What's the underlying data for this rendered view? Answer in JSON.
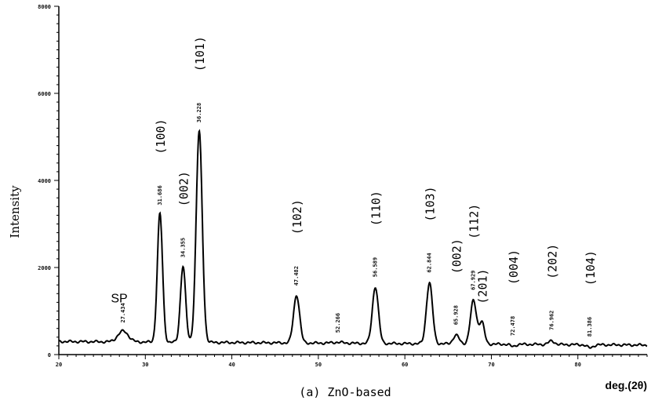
{
  "caption": "(a) ZnO-based",
  "chart_data": {
    "type": "line",
    "xlabel": "deg.(2θ)",
    "ylabel": "Intensity",
    "xlim": [
      20,
      88
    ],
    "ylim": [
      0,
      8000
    ],
    "x_ticks": [
      "20",
      "30",
      "40",
      "50",
      "60",
      "70",
      "80"
    ],
    "y_ticks": [
      "0",
      "2000",
      "4000",
      "6000",
      "8000"
    ],
    "grid": false,
    "baseline": 300,
    "peaks": [
      {
        "pos": 27.434,
        "height": 550,
        "width": 0.6,
        "pos_label": "27.434",
        "hkl": "",
        "extra": "SP"
      },
      {
        "pos": 31.686,
        "height": 3250,
        "width": 0.3,
        "pos_label": "31.686",
        "hkl": "(100)"
      },
      {
        "pos": 34.355,
        "height": 2050,
        "width": 0.3,
        "pos_label": "34.355",
        "hkl": "(002)"
      },
      {
        "pos": 36.228,
        "height": 5150,
        "width": 0.35,
        "pos_label": "36.228",
        "hkl": "(101)"
      },
      {
        "pos": 47.482,
        "height": 1400,
        "width": 0.35,
        "pos_label": "47.482",
        "hkl": "(102)"
      },
      {
        "pos": 52.266,
        "height": 320,
        "width": 0.7,
        "pos_label": "52.266",
        "hkl": ""
      },
      {
        "pos": 56.589,
        "height": 1600,
        "width": 0.35,
        "pos_label": "56.589",
        "hkl": "(110)"
      },
      {
        "pos": 62.844,
        "height": 1700,
        "width": 0.35,
        "pos_label": "62.844",
        "hkl": "(103)"
      },
      {
        "pos": 65.928,
        "height": 500,
        "width": 0.35,
        "pos_label": "65.928",
        "hkl": "(002)"
      },
      {
        "pos": 67.929,
        "height": 1300,
        "width": 0.35,
        "pos_label": "67.929",
        "hkl": "(112)"
      },
      {
        "pos": 68.9,
        "height": 800,
        "width": 0.3,
        "pos_label": "",
        "hkl": "(201)"
      },
      {
        "pos": 72.478,
        "height": 250,
        "width": 0.3,
        "pos_label": "72.478",
        "hkl": "(004)"
      },
      {
        "pos": 76.962,
        "height": 380,
        "width": 0.35,
        "pos_label": "76.962",
        "hkl": "(202)"
      },
      {
        "pos": 81.386,
        "height": 230,
        "width": 0.35,
        "pos_label": "81.386",
        "hkl": "(104)"
      }
    ]
  }
}
